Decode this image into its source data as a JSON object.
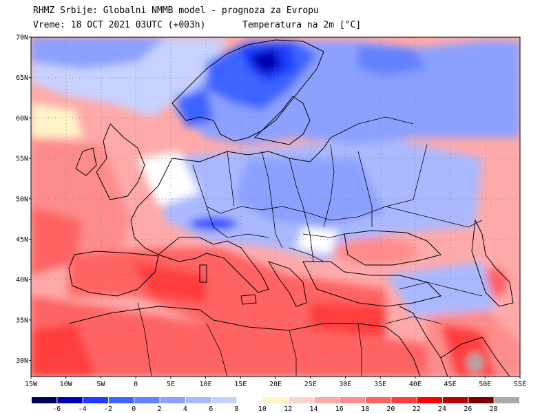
{
  "header": {
    "line1": "RHMZ Srbije: Globalni NMMB model - prognoza za Evropu",
    "valid_time": "Vreme: 18 OCT 2021 03UTC (+003h)",
    "field": "Temperatura na 2m [°C]"
  },
  "map": {
    "type": "forecast-contour-map",
    "region": "Europe",
    "lon_range": [
      -15,
      55
    ],
    "lat_range": [
      28,
      70
    ],
    "lat_ticks": [
      "30N",
      "35N",
      "40N",
      "45N",
      "50N",
      "55N",
      "60N",
      "65N",
      "70N"
    ],
    "lon_ticks": [
      "15W",
      "10W",
      "5W",
      "0",
      "5E",
      "10E",
      "15E",
      "20E",
      "25E",
      "30E",
      "35E",
      "40E",
      "45E",
      "50E",
      "55E"
    ],
    "gridlines": true
  },
  "colorbar": {
    "labels": [
      "-6",
      "-4",
      "-2",
      "0",
      "2",
      "4",
      "6",
      "8",
      "10",
      "12",
      "14",
      "16",
      "18",
      "20",
      "22",
      "24",
      "26",
      "28"
    ],
    "colors": [
      "#00005a",
      "#0000b4",
      "#1e3cff",
      "#3c64ff",
      "#6482ff",
      "#8ca0ff",
      "#aab9ff",
      "#c8d2ff",
      "#ffffff",
      "#fff5c8",
      "#ffd2d2",
      "#ffaaaa",
      "#ff8c8c",
      "#ff6464",
      "#ff3c3c",
      "#ff0000",
      "#b40000",
      "#780000",
      "#aaaaaa"
    ]
  }
}
